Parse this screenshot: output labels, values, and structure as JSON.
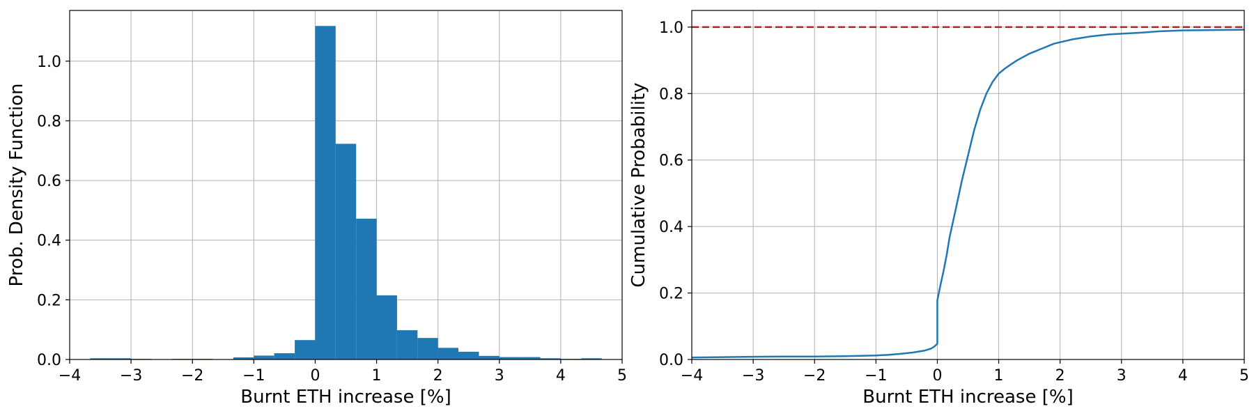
{
  "chart_data": [
    {
      "type": "bar",
      "subtype": "histogram",
      "xlabel": "Burnt ETH increase [%]",
      "ylabel": "Prob. Density Function",
      "xlim": [
        -4,
        5
      ],
      "ylim": [
        0,
        1.17
      ],
      "grid": true,
      "color": "#1f77b4",
      "xticks": [
        -4,
        -3,
        -2,
        -1,
        0,
        1,
        2,
        3,
        4,
        5
      ],
      "xtick_labels": [
        "−4",
        "−3",
        "−2",
        "−1",
        "0",
        "1",
        "2",
        "3",
        "4",
        "5"
      ],
      "yticks": [
        0.0,
        0.2,
        0.4,
        0.6,
        0.8,
        1.0
      ],
      "ytick_labels": [
        "0.0",
        "0.2",
        "0.4",
        "0.6",
        "0.8",
        "1.0"
      ],
      "bin_edges": [
        -4.0,
        -3.667,
        -3.333,
        -3.0,
        -2.667,
        -2.333,
        -2.0,
        -1.667,
        -1.333,
        -1.0,
        -0.667,
        -0.333,
        0.0,
        0.333,
        0.667,
        1.0,
        1.333,
        1.667,
        2.0,
        2.333,
        2.667,
        3.0,
        3.333,
        3.667,
        4.0,
        4.333,
        4.667,
        5.0
      ],
      "values": [
        0.001,
        0.004,
        0.004,
        0.002,
        0.001,
        0.002,
        0.002,
        0.001,
        0.007,
        0.013,
        0.021,
        0.065,
        1.118,
        0.723,
        0.472,
        0.215,
        0.098,
        0.072,
        0.039,
        0.026,
        0.012,
        0.008,
        0.008,
        0.004,
        0.002,
        0.004,
        0.001
      ]
    },
    {
      "type": "line",
      "xlabel": "Burnt ETH increase [%]",
      "ylabel": "Cumulative Probability",
      "xlim": [
        -4,
        5
      ],
      "ylim": [
        0,
        1.05
      ],
      "grid": true,
      "xticks": [
        -4,
        -3,
        -2,
        -1,
        0,
        1,
        2,
        3,
        4,
        5
      ],
      "xtick_labels": [
        "−4",
        "−3",
        "−2",
        "−1",
        "0",
        "1",
        "2",
        "3",
        "4",
        "5"
      ],
      "yticks": [
        0.0,
        0.2,
        0.4,
        0.6,
        0.8,
        1.0
      ],
      "ytick_labels": [
        "0.0",
        "0.2",
        "0.4",
        "0.6",
        "0.8",
        "1.0"
      ],
      "series": [
        {
          "color": "#1f77b4",
          "x": [
            -4.0,
            -3.5,
            -3.0,
            -2.5,
            -2.0,
            -1.5,
            -1.0,
            -0.8,
            -0.6,
            -0.4,
            -0.2,
            -0.1,
            -0.05,
            0.0,
            0.0,
            0.05,
            0.1,
            0.15,
            0.2,
            0.3,
            0.4,
            0.5,
            0.6,
            0.7,
            0.8,
            0.9,
            1.0,
            1.1,
            1.2,
            1.3,
            1.5,
            1.7,
            1.9,
            2.2,
            2.5,
            2.8,
            3.0,
            3.3,
            3.6,
            4.0,
            4.5,
            5.0
          ],
          "y": [
            0.006,
            0.007,
            0.008,
            0.009,
            0.009,
            0.01,
            0.012,
            0.014,
            0.017,
            0.021,
            0.027,
            0.033,
            0.039,
            0.047,
            0.178,
            0.223,
            0.265,
            0.312,
            0.368,
            0.452,
            0.538,
            0.614,
            0.69,
            0.752,
            0.8,
            0.835,
            0.86,
            0.875,
            0.888,
            0.9,
            0.92,
            0.935,
            0.95,
            0.963,
            0.972,
            0.978,
            0.98,
            0.983,
            0.987,
            0.99,
            0.991,
            0.992
          ]
        },
        {
          "color": "#b22222",
          "style": "dashed",
          "x": [
            -4,
            5
          ],
          "y": [
            1.0,
            1.0
          ]
        }
      ]
    }
  ]
}
